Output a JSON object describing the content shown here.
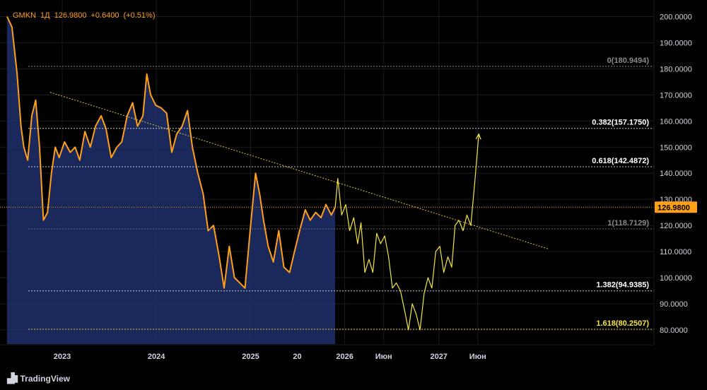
{
  "header": {
    "symbol": "GMKN",
    "interval": "1Д",
    "last": "126.9800",
    "change": "+0.6400",
    "change_pct": "(+0.51%)"
  },
  "branding": {
    "name": "TradingView",
    "icon": "tradingview-logo-icon"
  },
  "colors": {
    "background": "#000000",
    "price_line": "#ff9f1a",
    "area_fill": "#1e2f6b",
    "projection": "#f5e642",
    "trendline": "#d8c43a",
    "current_price_tag": "#ff9f1a",
    "grid": "#1c1c1c"
  },
  "chart_data": {
    "type": "line",
    "title": "",
    "x_axis": {
      "tick_labels": [
        "2023",
        "2024",
        "2025",
        "20",
        "2026",
        "Июн",
        "2027",
        "Июн"
      ],
      "tick_dates": [
        "2023-01-01",
        "2024-01-01",
        "2025-01-01",
        "2025-07-01",
        "2026-01-01",
        "2026-06-01",
        "2027-01-01",
        "2027-06-01"
      ]
    },
    "y_axis": {
      "ylim": [
        75,
        205
      ],
      "tick_labels": [
        "200.0000",
        "190.0000",
        "180.0000",
        "170.0000",
        "160.0000",
        "150.0000",
        "140.0000",
        "130.0000",
        "120.0000",
        "110.0000",
        "100.0000",
        "90.0000",
        "80.0000"
      ],
      "ticks": [
        200,
        190,
        180,
        170,
        160,
        150,
        140,
        130,
        120,
        110,
        100,
        90,
        80
      ]
    },
    "current_price": {
      "value": 126.98,
      "label": "126.9800"
    },
    "series": [
      {
        "kind": "price",
        "x": [
          "2022-06-01",
          "2022-06-20",
          "2022-07-10",
          "2022-07-25",
          "2022-08-05",
          "2022-08-20",
          "2022-09-05",
          "2022-09-20",
          "2022-10-05",
          "2022-10-20",
          "2022-11-05",
          "2022-11-20",
          "2022-12-05",
          "2022-12-20",
          "2023-01-10",
          "2023-02-01",
          "2023-02-20",
          "2023-03-10",
          "2023-03-30",
          "2023-04-20",
          "2023-05-10",
          "2023-06-01",
          "2023-06-20",
          "2023-07-10",
          "2023-08-01",
          "2023-08-20",
          "2023-09-10",
          "2023-10-01",
          "2023-10-20",
          "2023-11-10",
          "2023-11-25",
          "2023-12-10",
          "2023-12-30",
          "2024-01-20",
          "2024-02-10",
          "2024-03-01",
          "2024-03-20",
          "2024-04-10",
          "2024-05-01",
          "2024-05-20",
          "2024-06-10",
          "2024-07-01",
          "2024-07-20",
          "2024-08-10",
          "2024-09-01",
          "2024-09-20",
          "2024-10-10",
          "2024-10-30",
          "2024-11-20",
          "2024-12-10",
          "2024-12-30",
          "2025-01-20",
          "2025-02-05",
          "2025-02-20",
          "2025-03-10",
          "2025-03-30",
          "2025-04-20",
          "2025-05-10",
          "2025-06-01",
          "2025-06-20",
          "2025-07-10",
          "2025-08-01",
          "2025-08-20",
          "2025-09-10",
          "2025-10-01",
          "2025-10-20",
          "2025-11-10",
          "2025-11-25"
        ],
        "y": [
          200,
          196,
          178,
          158,
          150,
          145,
          162,
          168,
          150,
          122,
          125,
          140,
          150,
          146,
          152,
          148,
          150,
          145,
          156,
          150,
          158,
          162,
          157,
          146,
          150,
          152,
          162,
          167,
          158,
          162,
          178,
          170,
          166,
          165,
          163,
          148,
          155,
          158,
          164,
          150,
          140,
          132,
          118,
          120,
          108,
          96,
          112,
          100,
          98,
          96,
          118,
          140,
          132,
          122,
          112,
          106,
          118,
          104,
          102,
          110,
          118,
          126,
          122,
          125,
          123,
          128,
          124,
          127
        ]
      },
      {
        "kind": "projection",
        "x": [
          "2025-11-25",
          "2025-12-05",
          "2025-12-20",
          "2026-01-05",
          "2026-01-20",
          "2026-02-05",
          "2026-02-20",
          "2026-03-05",
          "2026-03-20",
          "2026-04-05",
          "2026-04-20",
          "2026-05-05",
          "2026-05-20",
          "2026-06-05",
          "2026-06-20",
          "2026-07-05",
          "2026-07-20",
          "2026-08-05",
          "2026-08-20",
          "2026-09-05",
          "2026-09-20",
          "2026-10-05",
          "2026-10-20",
          "2026-11-05",
          "2026-11-20",
          "2026-12-05",
          "2026-12-20",
          "2027-01-05",
          "2027-01-20",
          "2027-02-05",
          "2027-02-20",
          "2027-03-05",
          "2027-03-20",
          "2027-04-05",
          "2027-04-20",
          "2027-05-05",
          "2027-05-20",
          "2027-06-05"
        ],
        "y": [
          126.98,
          138,
          124,
          128,
          118,
          123,
          113,
          121,
          102,
          107,
          102,
          117,
          113,
          116,
          108,
          96,
          98,
          95,
          88,
          80,
          90,
          86,
          80,
          94,
          100,
          96,
          110,
          112,
          102,
          108,
          104,
          120,
          122,
          118,
          124,
          120,
          136,
          155
        ]
      }
    ],
    "trendline": {
      "from": {
        "x": "2022-11-15",
        "y": 171
      },
      "to": {
        "x": "2028-03-01",
        "y": 111
      }
    },
    "fib_levels": [
      {
        "ratio": "0",
        "value": 180.9494,
        "label": "0(180.9494)"
      },
      {
        "ratio": "0.382",
        "value": 157.175,
        "label": "0.382(157.1750)"
      },
      {
        "ratio": "0.618",
        "value": 142.4872,
        "label": "0.618(142.4872)"
      },
      {
        "ratio": "1",
        "value": 118.7129,
        "label": "1(118.7129)"
      },
      {
        "ratio": "1.382",
        "value": 94.9385,
        "label": "1.382(94.9385)"
      },
      {
        "ratio": "1.618",
        "value": 80.2507,
        "label": "1.618(80.2507)"
      }
    ],
    "grid": true,
    "legend": "none"
  }
}
